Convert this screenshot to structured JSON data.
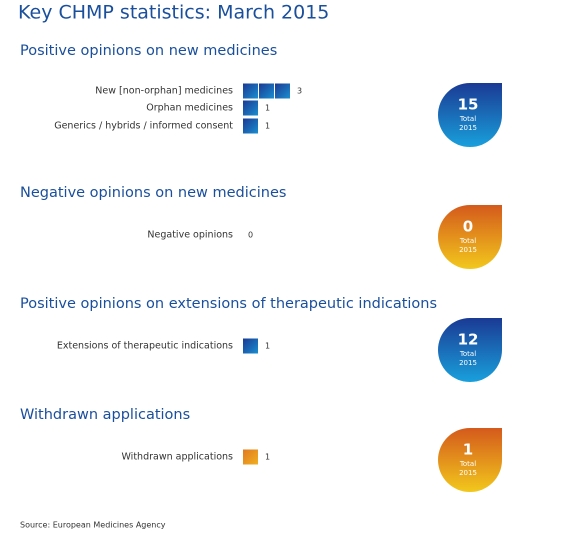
{
  "title": "Key CHMP statistics: March 2015",
  "sections": [
    {
      "heading": "Positive opinions on new medicines",
      "color": "blue",
      "items": [
        {
          "label": "New [non-orphan] medicines",
          "value": 3
        },
        {
          "label": "Orphan medicines",
          "value": 1
        },
        {
          "label": "Generics / hybrids / informed consent",
          "value": 1
        }
      ],
      "total": {
        "value": 15,
        "label": "Total",
        "year": "2015"
      }
    },
    {
      "heading": "Negative opinions on new medicines",
      "color": "orange",
      "items": [
        {
          "label": "Negative opinions",
          "value": 0
        }
      ],
      "total": {
        "value": 0,
        "label": "Total",
        "year": "2015"
      }
    },
    {
      "heading": "Positive opinions on extensions of therapeutic indications",
      "color": "blue",
      "items": [
        {
          "label": "Extensions of therapeutic indications",
          "value": 1
        }
      ],
      "total": {
        "value": 12,
        "label": "Total",
        "year": "2015"
      }
    },
    {
      "heading": "Withdrawn applications",
      "color": "orange",
      "items": [
        {
          "label": "Withdrawn applications",
          "value": 1
        }
      ],
      "total": {
        "value": 1,
        "label": "Total",
        "year": "2015"
      }
    }
  ],
  "source": "Source: European Medicines Agency"
}
